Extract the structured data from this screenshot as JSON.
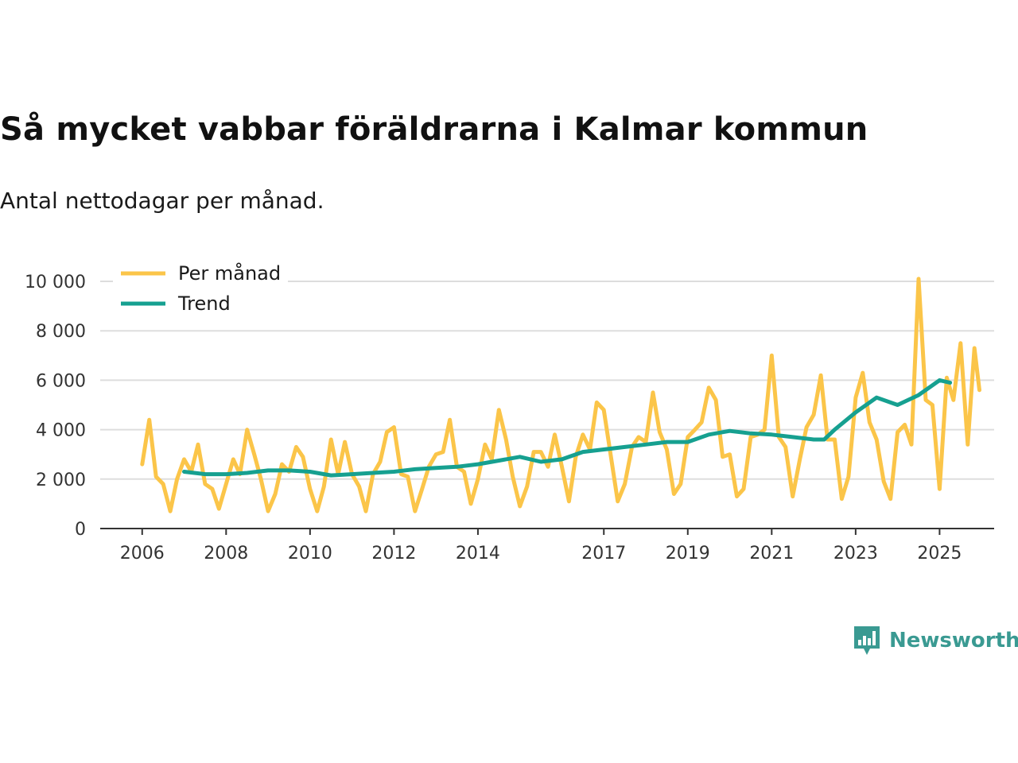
{
  "header": {
    "title": "Så mycket vabbar föräldrarna i Kalmar kommun",
    "subtitle": "Antal nettodagar per månad."
  },
  "brand": {
    "name": "Newsworthy",
    "icon": "newsworthy-logo-icon",
    "color": "#3a9a92"
  },
  "colors": {
    "per_month": "#fbc549",
    "trend": "#16a090",
    "grid": "#dddddd",
    "axis": "#333333"
  },
  "chart_data": {
    "type": "line",
    "title": "Så mycket vabbar föräldrarna i Kalmar kommun",
    "subtitle": "Antal nettodagar per månad.",
    "xlabel": "",
    "ylabel": "",
    "ylim": [
      0,
      10000
    ],
    "xlim": [
      2005,
      2026.3
    ],
    "yticks": [
      0,
      2000,
      4000,
      6000,
      8000,
      10000
    ],
    "ytick_labels": [
      "0",
      "2 000",
      "4 000",
      "6 000",
      "8 000",
      "10 000"
    ],
    "xticks": [
      2006,
      2008,
      2010,
      2012,
      2014,
      2017,
      2019,
      2021,
      2023,
      2025
    ],
    "xtick_labels": [
      "2006",
      "2008",
      "2010",
      "2012",
      "2014",
      "2017",
      "2019",
      "2021",
      "2023",
      "2025"
    ],
    "grid": true,
    "legend_position": "top-left",
    "series": [
      {
        "name": "Per månad",
        "color": "#fbc549",
        "points": [
          [
            2006.0,
            2600
          ],
          [
            2006.17,
            4400
          ],
          [
            2006.33,
            2100
          ],
          [
            2006.5,
            1800
          ],
          [
            2006.67,
            700
          ],
          [
            2006.83,
            2000
          ],
          [
            2007.0,
            2800
          ],
          [
            2007.17,
            2300
          ],
          [
            2007.33,
            3400
          ],
          [
            2007.5,
            1800
          ],
          [
            2007.67,
            1600
          ],
          [
            2007.83,
            800
          ],
          [
            2008.0,
            1800
          ],
          [
            2008.17,
            2800
          ],
          [
            2008.33,
            2200
          ],
          [
            2008.5,
            4000
          ],
          [
            2008.67,
            3000
          ],
          [
            2008.83,
            2000
          ],
          [
            2009.0,
            700
          ],
          [
            2009.17,
            1400
          ],
          [
            2009.33,
            2600
          ],
          [
            2009.5,
            2300
          ],
          [
            2009.67,
            3300
          ],
          [
            2009.83,
            2900
          ],
          [
            2010.0,
            1600
          ],
          [
            2010.17,
            700
          ],
          [
            2010.33,
            1700
          ],
          [
            2010.5,
            3600
          ],
          [
            2010.67,
            2200
          ],
          [
            2010.83,
            3500
          ],
          [
            2011.0,
            2200
          ],
          [
            2011.17,
            1700
          ],
          [
            2011.33,
            700
          ],
          [
            2011.5,
            2200
          ],
          [
            2011.67,
            2700
          ],
          [
            2011.83,
            3900
          ],
          [
            2012.0,
            4100
          ],
          [
            2012.17,
            2200
          ],
          [
            2012.33,
            2100
          ],
          [
            2012.5,
            700
          ],
          [
            2012.67,
            1600
          ],
          [
            2012.83,
            2500
          ],
          [
            2013.0,
            3000
          ],
          [
            2013.17,
            3100
          ],
          [
            2013.33,
            4400
          ],
          [
            2013.5,
            2500
          ],
          [
            2013.67,
            2300
          ],
          [
            2013.83,
            1000
          ],
          [
            2014.0,
            2000
          ],
          [
            2014.17,
            3400
          ],
          [
            2014.33,
            2800
          ],
          [
            2014.5,
            4800
          ],
          [
            2014.67,
            3600
          ],
          [
            2014.83,
            2100
          ],
          [
            2015.0,
            900
          ],
          [
            2015.17,
            1700
          ],
          [
            2015.33,
            3100
          ],
          [
            2015.5,
            3100
          ],
          [
            2015.67,
            2500
          ],
          [
            2015.83,
            3800
          ],
          [
            2016.0,
            2500
          ],
          [
            2016.17,
            1100
          ],
          [
            2016.33,
            2900
          ],
          [
            2016.5,
            3800
          ],
          [
            2016.67,
            3200
          ],
          [
            2016.83,
            5100
          ],
          [
            2017.0,
            4800
          ],
          [
            2017.17,
            2900
          ],
          [
            2017.33,
            1100
          ],
          [
            2017.5,
            1800
          ],
          [
            2017.67,
            3300
          ],
          [
            2017.83,
            3700
          ],
          [
            2018.0,
            3500
          ],
          [
            2018.17,
            5500
          ],
          [
            2018.33,
            3900
          ],
          [
            2018.5,
            3200
          ],
          [
            2018.67,
            1400
          ],
          [
            2018.83,
            1800
          ],
          [
            2019.0,
            3700
          ],
          [
            2019.17,
            4000
          ],
          [
            2019.33,
            4300
          ],
          [
            2019.5,
            5700
          ],
          [
            2019.67,
            5200
          ],
          [
            2019.83,
            2900
          ],
          [
            2020.0,
            3000
          ],
          [
            2020.17,
            1300
          ],
          [
            2020.33,
            1600
          ],
          [
            2020.5,
            3700
          ],
          [
            2020.67,
            3800
          ],
          [
            2020.83,
            4000
          ],
          [
            2021.0,
            7000
          ],
          [
            2021.17,
            3700
          ],
          [
            2021.33,
            3300
          ],
          [
            2021.5,
            1300
          ],
          [
            2021.67,
            2800
          ],
          [
            2021.83,
            4100
          ],
          [
            2022.0,
            4600
          ],
          [
            2022.17,
            6200
          ],
          [
            2022.33,
            3600
          ],
          [
            2022.5,
            3600
          ],
          [
            2022.67,
            1200
          ],
          [
            2022.83,
            2100
          ],
          [
            2023.0,
            5300
          ],
          [
            2023.17,
            6300
          ],
          [
            2023.33,
            4300
          ],
          [
            2023.5,
            3600
          ],
          [
            2023.67,
            1900
          ],
          [
            2023.83,
            1200
          ],
          [
            2024.0,
            3900
          ],
          [
            2024.17,
            4200
          ],
          [
            2024.33,
            3400
          ],
          [
            2024.5,
            10100
          ],
          [
            2024.67,
            5200
          ],
          [
            2024.83,
            5000
          ],
          [
            2025.0,
            1600
          ],
          [
            2025.17,
            6100
          ],
          [
            2025.33,
            5200
          ],
          [
            2025.5,
            7500
          ],
          [
            2025.67,
            3400
          ],
          [
            2025.83,
            7300
          ],
          [
            2025.95,
            5600
          ]
        ]
      },
      {
        "name": "Trend",
        "color": "#16a090",
        "points": [
          [
            2007.0,
            2300
          ],
          [
            2007.5,
            2200
          ],
          [
            2008.0,
            2200
          ],
          [
            2008.5,
            2250
          ],
          [
            2009.0,
            2350
          ],
          [
            2009.5,
            2350
          ],
          [
            2010.0,
            2300
          ],
          [
            2010.5,
            2150
          ],
          [
            2011.0,
            2200
          ],
          [
            2011.5,
            2250
          ],
          [
            2012.0,
            2300
          ],
          [
            2012.5,
            2400
          ],
          [
            2013.0,
            2450
          ],
          [
            2013.5,
            2500
          ],
          [
            2014.0,
            2600
          ],
          [
            2014.5,
            2750
          ],
          [
            2015.0,
            2900
          ],
          [
            2015.5,
            2700
          ],
          [
            2016.0,
            2800
          ],
          [
            2016.5,
            3100
          ],
          [
            2017.0,
            3200
          ],
          [
            2017.5,
            3300
          ],
          [
            2018.0,
            3400
          ],
          [
            2018.5,
            3500
          ],
          [
            2019.0,
            3500
          ],
          [
            2019.5,
            3800
          ],
          [
            2020.0,
            3950
          ],
          [
            2020.5,
            3850
          ],
          [
            2021.0,
            3800
          ],
          [
            2021.5,
            3700
          ],
          [
            2022.0,
            3600
          ],
          [
            2022.25,
            3600
          ],
          [
            2022.5,
            4000
          ],
          [
            2023.0,
            4700
          ],
          [
            2023.5,
            5300
          ],
          [
            2024.0,
            5000
          ],
          [
            2024.5,
            5400
          ],
          [
            2025.0,
            6000
          ],
          [
            2025.25,
            5900
          ]
        ]
      }
    ]
  }
}
